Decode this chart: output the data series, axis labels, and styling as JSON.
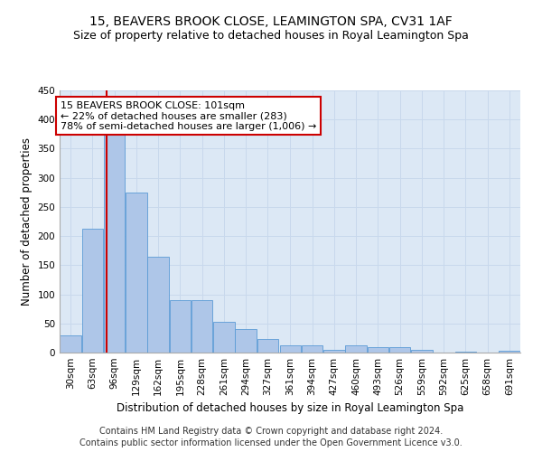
{
  "title": "15, BEAVERS BROOK CLOSE, LEAMINGTON SPA, CV31 1AF",
  "subtitle": "Size of property relative to detached houses in Royal Leamington Spa",
  "xlabel": "Distribution of detached houses by size in Royal Leamington Spa",
  "ylabel": "Number of detached properties",
  "footer1": "Contains HM Land Registry data © Crown copyright and database right 2024.",
  "footer2": "Contains public sector information licensed under the Open Government Licence v3.0.",
  "annotation_title": "15 BEAVERS BROOK CLOSE: 101sqm",
  "annotation_line1": "← 22% of detached houses are smaller (283)",
  "annotation_line2": "78% of semi-detached houses are larger (1,006) →",
  "property_size_sqm": 101,
  "bins": [
    30,
    63,
    96,
    129,
    162,
    195,
    228,
    261,
    294,
    327,
    361,
    394,
    427,
    460,
    493,
    526,
    559,
    592,
    625,
    658,
    691
  ],
  "bar_labels": [
    "30sqm",
    "63sqm",
    "96sqm",
    "129sqm",
    "162sqm",
    "195sqm",
    "228sqm",
    "261sqm",
    "294sqm",
    "327sqm",
    "361sqm",
    "394sqm",
    "427sqm",
    "460sqm",
    "493sqm",
    "526sqm",
    "559sqm",
    "592sqm",
    "625sqm",
    "658sqm",
    "691sqm"
  ],
  "values": [
    30,
    212,
    378,
    275,
    165,
    90,
    90,
    52,
    40,
    23,
    12,
    12,
    5,
    12,
    10,
    9,
    4,
    0,
    2,
    0,
    3
  ],
  "bar_color": "#aec6e8",
  "bar_edge_color": "#5b9bd5",
  "marker_line_color": "#cc0000",
  "grid_color": "#c8d8ec",
  "background_color": "#dce8f5",
  "ylim": [
    0,
    450
  ],
  "yticks": [
    0,
    50,
    100,
    150,
    200,
    250,
    300,
    350,
    400,
    450
  ],
  "annotation_box_color": "#ffffff",
  "annotation_box_edge": "#cc0000",
  "title_fontsize": 10,
  "subtitle_fontsize": 9,
  "axis_label_fontsize": 8.5,
  "tick_fontsize": 7.5,
  "footer_fontsize": 7,
  "ann_fontsize": 8
}
